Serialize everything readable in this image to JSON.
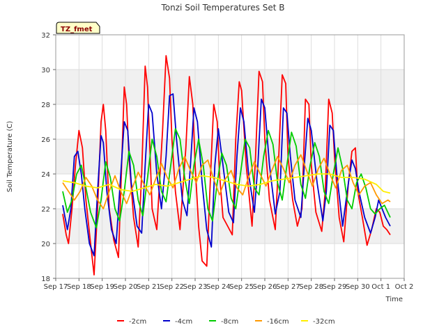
{
  "chart_data": {
    "type": "line",
    "title": "Tonzi Soil Temperatures Set B",
    "xlabel": "Time",
    "ylabel": "Soil Temperature (C)",
    "annotation": "TZ_fmet",
    "xlim": [
      0,
      15
    ],
    "ylim": [
      18,
      32
    ],
    "yticks": [
      18,
      20,
      22,
      24,
      26,
      28,
      30,
      32
    ],
    "xticks": [
      {
        "x": 0,
        "label": "Sep 17"
      },
      {
        "x": 1,
        "label": "Sep 18"
      },
      {
        "x": 2,
        "label": "Sep 19"
      },
      {
        "x": 3,
        "label": "Sep 20"
      },
      {
        "x": 4,
        "label": "Sep 21"
      },
      {
        "x": 5,
        "label": "Sep 22"
      },
      {
        "x": 6,
        "label": "Sep 23"
      },
      {
        "x": 7,
        "label": "Sep 24"
      },
      {
        "x": 8,
        "label": "Sep 25"
      },
      {
        "x": 9,
        "label": "Sep 26"
      },
      {
        "x": 10,
        "label": "Sep 27"
      },
      {
        "x": 11,
        "label": "Sep 28"
      },
      {
        "x": 12,
        "label": "Sep 29"
      },
      {
        "x": 13,
        "label": "Sep 30"
      },
      {
        "x": 14,
        "label": "Oct 1"
      },
      {
        "x": 15,
        "label": "Oct 2"
      }
    ],
    "grid": true,
    "legend_position": "bottom",
    "series": [
      {
        "name": "-2cm",
        "color": "#ff0000",
        "x": [
          0.3,
          0.45,
          0.55,
          0.7,
          0.85,
          1.0,
          1.15,
          1.3,
          1.5,
          1.65,
          1.8,
          1.95,
          2.05,
          2.15,
          2.3,
          2.5,
          2.7,
          2.8,
          2.95,
          3.05,
          3.15,
          3.35,
          3.55,
          3.7,
          3.85,
          3.95,
          4.05,
          4.15,
          4.35,
          4.6,
          4.75,
          4.9,
          5.0,
          5.15,
          5.35,
          5.6,
          5.75,
          5.9,
          6.0,
          6.15,
          6.3,
          6.5,
          6.7,
          6.8,
          6.95,
          7.05,
          7.2,
          7.4,
          7.6,
          7.75,
          7.9,
          8.0,
          8.2,
          8.45,
          8.6,
          8.75,
          8.9,
          9.0,
          9.2,
          9.45,
          9.6,
          9.75,
          9.9,
          10.0,
          10.2,
          10.4,
          10.6,
          10.75,
          10.9,
          11.0,
          11.2,
          11.45,
          11.6,
          11.75,
          11.9,
          12.0,
          12.2,
          12.4,
          12.6,
          12.75,
          12.9,
          13.0,
          13.2,
          13.4,
          13.6,
          13.8,
          13.95,
          14.1,
          14.25,
          14.4
        ],
        "y": [
          21.7,
          20.5,
          20.0,
          22.0,
          24.5,
          26.5,
          25.5,
          22.5,
          20.0,
          18.2,
          22.0,
          27.0,
          28.0,
          26.5,
          22.0,
          20.2,
          19.2,
          23.0,
          29.0,
          28.0,
          25.0,
          21.5,
          19.8,
          24.0,
          30.2,
          29.0,
          25.5,
          22.0,
          20.8,
          26.5,
          30.8,
          29.5,
          26.0,
          23.0,
          20.8,
          25.5,
          29.6,
          28.0,
          24.5,
          21.0,
          19.0,
          18.7,
          25.0,
          28.0,
          27.0,
          24.0,
          21.5,
          21.0,
          20.5,
          26.0,
          29.3,
          28.8,
          24.5,
          21.0,
          25.0,
          29.9,
          29.3,
          26.0,
          22.5,
          20.8,
          25.0,
          29.7,
          29.2,
          25.0,
          22.5,
          21.0,
          22.0,
          28.3,
          28.0,
          24.5,
          21.8,
          20.7,
          23.0,
          28.3,
          27.5,
          25.0,
          21.5,
          20.1,
          23.5,
          25.3,
          25.5,
          23.0,
          21.5,
          19.9,
          20.8,
          22.0,
          21.8,
          21.0,
          20.8,
          20.5
        ]
      },
      {
        "name": "-4cm",
        "color": "#0000cc",
        "x": [
          0.3,
          0.5,
          0.65,
          0.8,
          0.95,
          1.1,
          1.25,
          1.45,
          1.65,
          1.8,
          1.95,
          2.05,
          2.2,
          2.4,
          2.6,
          2.8,
          2.95,
          3.1,
          3.25,
          3.5,
          3.7,
          3.85,
          4.0,
          4.15,
          4.35,
          4.55,
          4.75,
          4.9,
          5.05,
          5.2,
          5.45,
          5.65,
          5.8,
          5.95,
          6.1,
          6.3,
          6.5,
          6.7,
          6.85,
          7.0,
          7.2,
          7.45,
          7.65,
          7.8,
          7.95,
          8.1,
          8.3,
          8.55,
          8.7,
          8.85,
          9.0,
          9.2,
          9.45,
          9.65,
          9.8,
          9.95,
          10.1,
          10.3,
          10.55,
          10.7,
          10.85,
          11.0,
          11.25,
          11.5,
          11.65,
          11.8,
          11.95,
          12.1,
          12.35,
          12.6,
          12.75,
          12.9,
          13.05,
          13.3,
          13.55,
          13.75,
          13.9,
          14.05,
          14.2,
          14.4
        ],
        "y": [
          22.2,
          20.8,
          22.0,
          25.0,
          25.3,
          24.0,
          22.0,
          20.0,
          19.3,
          23.0,
          26.2,
          25.8,
          23.0,
          20.8,
          20.0,
          24.0,
          27.0,
          26.5,
          23.5,
          21.0,
          20.6,
          24.5,
          28.0,
          27.5,
          24.0,
          22.0,
          25.0,
          28.5,
          28.6,
          26.0,
          22.5,
          21.6,
          24.5,
          27.8,
          27.0,
          23.5,
          20.8,
          19.8,
          24.5,
          26.6,
          24.5,
          21.8,
          21.2,
          25.0,
          27.8,
          27.0,
          24.0,
          21.8,
          24.5,
          28.3,
          27.8,
          24.5,
          21.7,
          23.0,
          27.8,
          27.5,
          25.0,
          22.5,
          21.5,
          24.5,
          27.2,
          26.5,
          23.5,
          21.3,
          23.0,
          26.8,
          26.5,
          24.0,
          21.0,
          23.5,
          24.8,
          24.3,
          23.0,
          21.5,
          20.6,
          21.5,
          22.5,
          22.0,
          21.5,
          21.0
        ]
      },
      {
        "name": "-8cm",
        "color": "#00cc00",
        "x": [
          0.3,
          0.5,
          0.7,
          0.9,
          1.1,
          1.3,
          1.5,
          1.75,
          1.95,
          2.15,
          2.35,
          2.55,
          2.75,
          2.95,
          3.15,
          3.35,
          3.55,
          3.75,
          3.95,
          4.15,
          4.35,
          4.55,
          4.75,
          4.95,
          5.15,
          5.35,
          5.55,
          5.75,
          5.95,
          6.15,
          6.35,
          6.55,
          6.75,
          6.95,
          7.15,
          7.35,
          7.55,
          7.75,
          7.95,
          8.15,
          8.35,
          8.55,
          8.75,
          8.95,
          9.15,
          9.35,
          9.55,
          9.75,
          9.95,
          10.15,
          10.35,
          10.55,
          10.75,
          10.95,
          11.15,
          11.35,
          11.55,
          11.75,
          11.95,
          12.15,
          12.35,
          12.55,
          12.75,
          12.95,
          13.15,
          13.35,
          13.55,
          13.75,
          13.95,
          14.15,
          14.4
        ],
        "y": [
          23.0,
          21.8,
          22.5,
          24.0,
          24.5,
          23.2,
          21.8,
          20.9,
          22.5,
          24.7,
          23.8,
          22.0,
          21.3,
          23.0,
          25.3,
          24.5,
          22.5,
          21.6,
          23.8,
          26.0,
          25.0,
          23.0,
          22.4,
          24.5,
          26.6,
          26.0,
          23.8,
          22.3,
          24.5,
          26.0,
          24.5,
          22.0,
          21.3,
          23.5,
          25.2,
          24.5,
          22.6,
          22.0,
          24.0,
          26.0,
          25.5,
          23.2,
          22.8,
          25.0,
          26.5,
          25.7,
          23.5,
          22.5,
          24.5,
          26.4,
          25.6,
          23.4,
          22.6,
          24.5,
          25.8,
          25.0,
          23.0,
          22.3,
          24.0,
          25.5,
          24.3,
          22.5,
          22.0,
          23.5,
          24.0,
          23.2,
          22.0,
          21.7,
          22.0,
          22.2,
          21.5
        ]
      },
      {
        "name": "-16cm",
        "color": "#ff9900",
        "x": [
          0.3,
          0.55,
          0.8,
          1.05,
          1.3,
          1.55,
          1.8,
          2.05,
          2.3,
          2.55,
          2.8,
          3.05,
          3.3,
          3.55,
          3.8,
          4.05,
          4.3,
          4.55,
          4.8,
          5.05,
          5.3,
          5.55,
          5.8,
          6.05,
          6.3,
          6.55,
          6.8,
          7.05,
          7.3,
          7.55,
          7.8,
          8.05,
          8.3,
          8.55,
          8.8,
          9.05,
          9.3,
          9.55,
          9.8,
          10.05,
          10.3,
          10.55,
          10.8,
          11.05,
          11.3,
          11.55,
          11.8,
          12.05,
          12.3,
          12.55,
          12.8,
          13.05,
          13.3,
          13.55,
          13.8,
          14.05,
          14.3,
          14.4
        ],
        "y": [
          23.5,
          23.0,
          22.5,
          23.0,
          23.8,
          23.3,
          22.5,
          22.0,
          23.0,
          23.9,
          23.0,
          22.3,
          23.2,
          24.1,
          23.4,
          22.8,
          23.7,
          24.6,
          23.8,
          23.2,
          24.3,
          25.0,
          24.2,
          23.5,
          24.5,
          24.8,
          23.7,
          22.8,
          23.7,
          24.2,
          23.2,
          22.8,
          23.8,
          24.7,
          24.0,
          23.3,
          24.2,
          25.0,
          24.3,
          23.5,
          24.5,
          25.1,
          24.2,
          23.3,
          24.3,
          24.9,
          24.0,
          23.2,
          24.2,
          24.5,
          23.5,
          22.8,
          23.3,
          23.5,
          22.8,
          22.3,
          22.5,
          22.4
        ]
      },
      {
        "name": "-32cm",
        "color": "#ffee00",
        "x": [
          0.3,
          0.8,
          1.3,
          1.8,
          2.3,
          2.8,
          3.3,
          3.8,
          4.3,
          4.8,
          5.3,
          5.8,
          6.3,
          6.8,
          7.3,
          7.8,
          8.3,
          8.8,
          9.3,
          9.8,
          10.3,
          10.8,
          11.3,
          11.8,
          12.3,
          12.8,
          13.3,
          13.8,
          14.1,
          14.4
        ],
        "y": [
          23.6,
          23.5,
          23.3,
          23.2,
          23.4,
          23.1,
          23.0,
          23.2,
          23.4,
          23.3,
          23.5,
          23.7,
          23.9,
          23.8,
          23.6,
          23.4,
          23.3,
          23.4,
          23.6,
          23.7,
          23.8,
          23.9,
          24.0,
          24.0,
          23.8,
          23.8,
          23.7,
          23.4,
          23.0,
          22.9
        ]
      }
    ]
  }
}
